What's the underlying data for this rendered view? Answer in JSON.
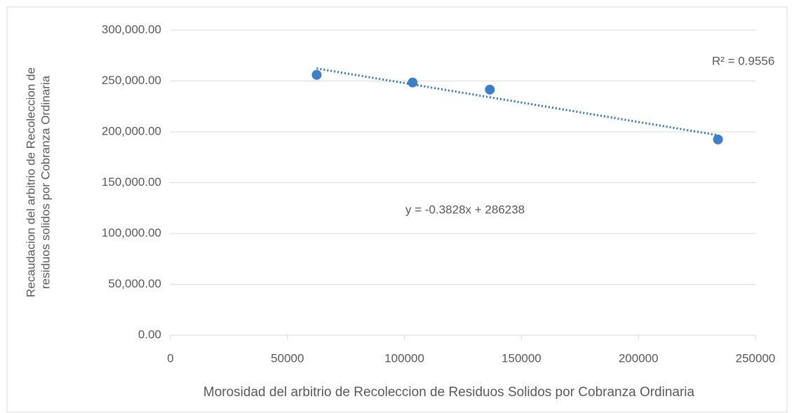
{
  "chart_data": {
    "type": "scatter",
    "xlabel": "Morosidad del arbitrio de Recoleccion de Residuos Solidos por Cobranza Ordinaria",
    "ylabel": [
      "Recaudacion del arbitrio de Recoleccion de",
      "residuos solidos por Cobranza Ordinaria"
    ],
    "x": [
      62500,
      103500,
      136500,
      234000
    ],
    "values": [
      256000,
      248500,
      241500,
      192500
    ],
    "color": "#3a7fc8",
    "xlim": [
      0,
      250000
    ],
    "xticks": [
      0,
      50000,
      100000,
      150000,
      200000,
      250000
    ],
    "ylim": [
      0,
      300000
    ],
    "yticks": [
      {
        "value": 0,
        "label": "0.00"
      },
      {
        "value": 50000,
        "label": "50,000.00"
      },
      {
        "value": 100000,
        "label": "100,000.00"
      },
      {
        "value": 150000,
        "label": "150,000.00"
      },
      {
        "value": 200000,
        "label": "200,000.00"
      },
      {
        "value": 250000,
        "label": "250,000.00"
      },
      {
        "value": 300000,
        "label": "300,000.00"
      }
    ],
    "grid": true,
    "trendline": {
      "slope": -0.3828,
      "intercept": 286238,
      "color": "#2e75b6",
      "label": "y = -0.3828x + 286238",
      "r2_label": "R² = 0.9556"
    }
  }
}
